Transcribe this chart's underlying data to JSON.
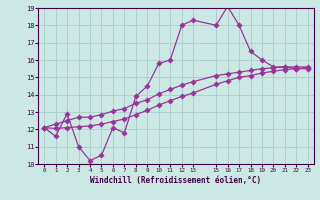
{
  "xlabel": "Windchill (Refroidissement éolien,°C)",
  "bg_color": "#cce8e4",
  "grid_color": "#aacccc",
  "line_color": "#993399",
  "line1_x": [
    0,
    1,
    2,
    3,
    4,
    5,
    6,
    7,
    8,
    9,
    10,
    11,
    12,
    13,
    15,
    16,
    17,
    18,
    19,
    20,
    21,
    22,
    23
  ],
  "line1_y": [
    12.1,
    11.6,
    12.9,
    11.0,
    10.2,
    10.5,
    12.1,
    11.8,
    13.9,
    14.5,
    15.8,
    16.0,
    18.0,
    18.3,
    18.0,
    19.1,
    18.0,
    16.5,
    16.0,
    15.6,
    15.6,
    15.5,
    15.5
  ],
  "line2_x": [
    0,
    1,
    2,
    3,
    4,
    5,
    6,
    7,
    8,
    9,
    10,
    11,
    12,
    13,
    15,
    16,
    17,
    18,
    19,
    20,
    21,
    22,
    23
  ],
  "line2_y": [
    12.1,
    12.3,
    12.5,
    12.7,
    12.7,
    12.85,
    13.05,
    13.2,
    13.5,
    13.7,
    14.05,
    14.3,
    14.55,
    14.75,
    15.1,
    15.2,
    15.3,
    15.4,
    15.5,
    15.55,
    15.6,
    15.6,
    15.6
  ],
  "line3_x": [
    0,
    1,
    2,
    3,
    4,
    5,
    6,
    7,
    8,
    9,
    10,
    11,
    12,
    13,
    15,
    16,
    17,
    18,
    19,
    20,
    21,
    22,
    23
  ],
  "line3_y": [
    12.1,
    12.05,
    12.1,
    12.15,
    12.2,
    12.3,
    12.45,
    12.6,
    12.85,
    13.1,
    13.4,
    13.65,
    13.9,
    14.1,
    14.6,
    14.8,
    15.0,
    15.1,
    15.25,
    15.35,
    15.45,
    15.5,
    15.55
  ]
}
